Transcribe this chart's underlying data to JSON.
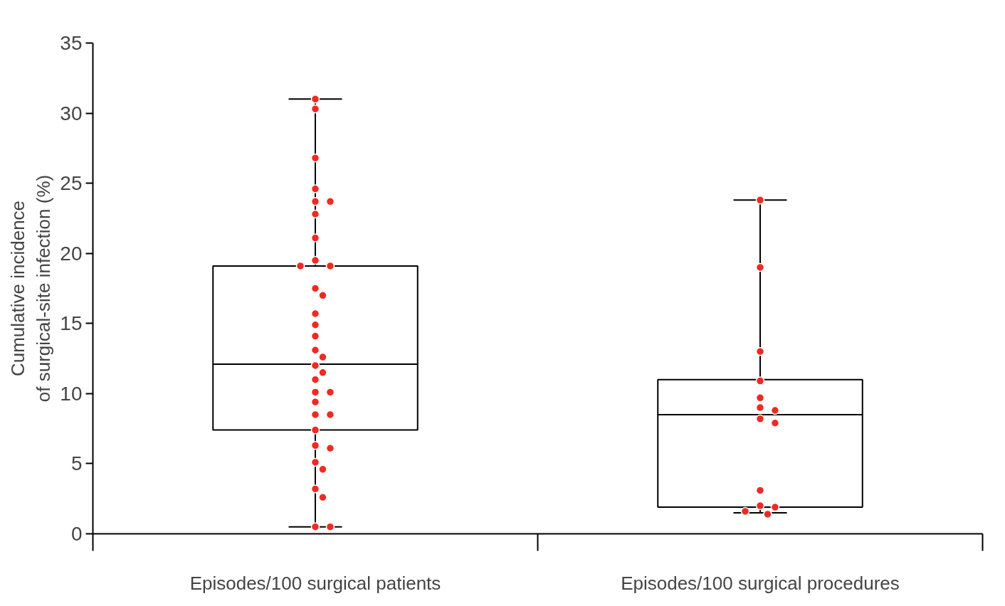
{
  "chart_data": {
    "type": "box",
    "ylabel": "Cumulative incidence\nof surgical-site infection (%)",
    "categories": [
      "Episodes/100 surgical patients",
      "Episodes/100 surgical procedures"
    ],
    "boxes": [
      {
        "low": 0.5,
        "q1": 7.4,
        "median": 12.1,
        "q3": 19.1,
        "high": 31.0
      },
      {
        "low": 1.5,
        "q1": 1.9,
        "median": 8.5,
        "q3": 11.0,
        "high": 23.8
      }
    ],
    "series": [
      {
        "type": "scatter",
        "color": "#ee2a24",
        "x": [
          "Episodes/100 surgical patients",
          "Episodes/100 surgical patients",
          "Episodes/100 surgical patients",
          "Episodes/100 surgical patients",
          "Episodes/100 surgical patients",
          "Episodes/100 surgical patients",
          "Episodes/100 surgical patients",
          "Episodes/100 surgical patients",
          "Episodes/100 surgical patients",
          "Episodes/100 surgical patients",
          "Episodes/100 surgical patients",
          "Episodes/100 surgical patients",
          "Episodes/100 surgical patients",
          "Episodes/100 surgical patients",
          "Episodes/100 surgical patients",
          "Episodes/100 surgical patients",
          "Episodes/100 surgical patients",
          "Episodes/100 surgical patients",
          "Episodes/100 surgical patients",
          "Episodes/100 surgical patients",
          "Episodes/100 surgical patients",
          "Episodes/100 surgical patients",
          "Episodes/100 surgical patients",
          "Episodes/100 surgical patients",
          "Episodes/100 surgical patients",
          "Episodes/100 surgical patients",
          "Episodes/100 surgical patients",
          "Episodes/100 surgical patients",
          "Episodes/100 surgical patients",
          "Episodes/100 surgical patients",
          "Episodes/100 surgical patients",
          "Episodes/100 surgical patients",
          "Episodes/100 surgical patients",
          "Episodes/100 surgical patients",
          "Episodes/100 surgical patients"
        ],
        "values": [
          31.0,
          30.3,
          26.8,
          24.6,
          23.7,
          23.7,
          22.8,
          21.1,
          19.5,
          19.1,
          19.1,
          17.5,
          17.0,
          15.7,
          14.9,
          14.1,
          13.1,
          12.6,
          12.0,
          11.5,
          11.0,
          10.1,
          10.1,
          9.4,
          8.5,
          8.5,
          7.4,
          6.3,
          6.1,
          5.1,
          4.6,
          3.2,
          2.6,
          0.5,
          0.5
        ]
      },
      {
        "type": "scatter",
        "color": "#ee2a24",
        "x": [
          "Episodes/100 surgical procedures",
          "Episodes/100 surgical procedures",
          "Episodes/100 surgical procedures",
          "Episodes/100 surgical procedures",
          "Episodes/100 surgical procedures",
          "Episodes/100 surgical procedures",
          "Episodes/100 surgical procedures",
          "Episodes/100 surgical procedures",
          "Episodes/100 surgical procedures",
          "Episodes/100 surgical procedures",
          "Episodes/100 surgical procedures",
          "Episodes/100 surgical procedures",
          "Episodes/100 surgical procedures",
          "Episodes/100 surgical procedures"
        ],
        "values": [
          23.8,
          19.0,
          13.0,
          10.9,
          9.7,
          9.0,
          8.8,
          8.2,
          7.9,
          3.1,
          2.0,
          1.9,
          1.6,
          1.4
        ]
      }
    ],
    "ylim": [
      0,
      35
    ],
    "yticks": [
      0,
      5,
      10,
      15,
      20,
      25,
      30,
      35
    ],
    "grid": false,
    "marker": "circle"
  }
}
